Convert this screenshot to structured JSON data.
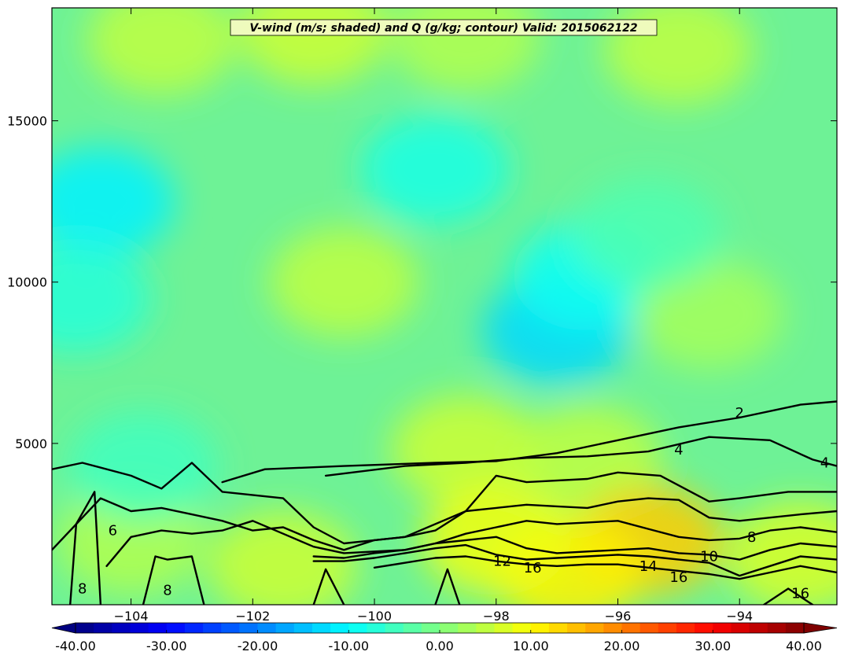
{
  "chart_data": {
    "type": "heatmap",
    "title": "V-wind (m/s; shaded) and Q (g/kg; contour) Valid: 2015062122",
    "xlabel": "",
    "ylabel": "",
    "xlim": [
      -105.3,
      -92.4
    ],
    "ylim": [
      0,
      18500
    ],
    "x_ticks": [
      -104,
      -102,
      -100,
      -98,
      -96,
      -94
    ],
    "x_tick_labels": [
      "−104",
      "−102",
      "−100",
      "−98",
      "−96",
      "−94"
    ],
    "y_ticks": [
      5000,
      10000,
      15000
    ],
    "y_tick_labels": [
      "5000",
      "10000",
      "15000"
    ],
    "grid": false,
    "shaded_field": {
      "name": "V-wind",
      "units": "m/s",
      "range": [
        -40,
        40
      ],
      "colormap": "jet",
      "colorbar_ticks": [
        -40,
        -30,
        -20,
        -10,
        0,
        10,
        20,
        30,
        40
      ],
      "colorbar_tick_labels": [
        "-40.00",
        "-30.00",
        "-20.00",
        "-10.00",
        "0.00",
        "10.00",
        "20.00",
        "30.00",
        "40.00"
      ],
      "colorbar_extend": "both",
      "features": [
        {
          "x": -104.5,
          "y": 12500,
          "value": -11
        },
        {
          "x": -104.9,
          "y": 9500,
          "value": -7
        },
        {
          "x": -99.0,
          "y": 13500,
          "value": -8
        },
        {
          "x": -97.0,
          "y": 8500,
          "value": -13
        },
        {
          "x": -96.5,
          "y": 10200,
          "value": -9
        },
        {
          "x": -103.5,
          "y": 17500,
          "value": 5
        },
        {
          "x": -101.0,
          "y": 17800,
          "value": 6
        },
        {
          "x": -98.5,
          "y": 17600,
          "value": 4
        },
        {
          "x": -95.0,
          "y": 17200,
          "value": 5
        },
        {
          "x": -100.5,
          "y": 10000,
          "value": 5
        },
        {
          "x": -94.5,
          "y": 9000,
          "value": 3
        },
        {
          "x": -95.5,
          "y": 11500,
          "value": -4
        },
        {
          "x": -98.5,
          "y": 4800,
          "value": 6
        },
        {
          "x": -96.5,
          "y": 4500,
          "value": 5
        },
        {
          "x": -95.5,
          "y": 2000,
          "value": 14
        },
        {
          "x": -96.8,
          "y": 1000,
          "value": 11
        },
        {
          "x": -98.0,
          "y": 2000,
          "value": 9
        },
        {
          "x": -101.5,
          "y": 1200,
          "value": 6
        },
        {
          "x": -104.0,
          "y": 2000,
          "value": 4
        },
        {
          "x": -93.0,
          "y": 1500,
          "value": 7
        },
        {
          "x": -103.8,
          "y": 4300,
          "value": -5
        }
      ]
    },
    "contour_field": {
      "name": "Q",
      "units": "g/kg",
      "levels": [
        2,
        4,
        6,
        8,
        10,
        12,
        14,
        16
      ],
      "labels": [
        {
          "text": "2",
          "x": -94.0,
          "y": 5950
        },
        {
          "text": "4",
          "x": -95.0,
          "y": 4800
        },
        {
          "text": "4",
          "x": -92.6,
          "y": 4400
        },
        {
          "text": "6",
          "x": -104.3,
          "y": 2300
        },
        {
          "text": "8",
          "x": -104.8,
          "y": 500
        },
        {
          "text": "8",
          "x": -103.4,
          "y": 450
        },
        {
          "text": "8",
          "x": -93.8,
          "y": 2100
        },
        {
          "text": "10",
          "x": -94.5,
          "y": 1500
        },
        {
          "text": "12",
          "x": -97.9,
          "y": 1350
        },
        {
          "text": "14",
          "x": -95.5,
          "y": 1200
        },
        {
          "text": "16",
          "x": -97.4,
          "y": 1150
        },
        {
          "text": "16",
          "x": -95.0,
          "y": 850
        },
        {
          "text": "16",
          "x": -93.0,
          "y": 350
        }
      ],
      "lines": [
        {
          "level": 2,
          "x": [
            -102.5,
            -101.8,
            -100.5,
            -99.0,
            -98.0,
            -97.0,
            -96.0,
            -95.0,
            -94.0,
            -93.0,
            -92.4
          ],
          "y": [
            3800,
            4200,
            4300,
            4400,
            4450,
            4700,
            5100,
            5500,
            5800,
            6200,
            6300
          ]
        },
        {
          "level": 4,
          "x": [
            -100.8,
            -99.5,
            -98.5,
            -97.5,
            -96.5,
            -95.5,
            -94.5,
            -93.5,
            -92.8,
            -92.4
          ],
          "y": [
            4000,
            4300,
            4400,
            4550,
            4600,
            4750,
            5200,
            5100,
            4500,
            4300
          ]
        },
        {
          "level": 6,
          "x": [
            -105.3,
            -104.8,
            -104.0,
            -103.5,
            -103.0,
            -102.5,
            -101.5,
            -101.0,
            -100.5,
            -100.0,
            -99.5,
            -98.5,
            -98.0,
            -97.5,
            -96.5,
            -96.0,
            -95.3,
            -94.5,
            -94.0,
            -93.2,
            -92.4
          ],
          "y": [
            4200,
            4400,
            4000,
            3600,
            4400,
            3500,
            3300,
            2400,
            1900,
            2000,
            2100,
            2900,
            4000,
            3800,
            3900,
            4100,
            4000,
            3200,
            3300,
            3500,
            3500
          ]
        },
        {
          "level": 8,
          "x": [
            -105.3,
            -104.5,
            -104.0,
            -103.5,
            -103.0,
            -102.5,
            -102.0,
            -101.5,
            -101.0,
            -100.5,
            -100.0,
            -99.5,
            -99.0,
            -98.5,
            -98.0,
            -97.5,
            -97.0,
            -96.5,
            -96.0,
            -95.5,
            -95.0,
            -94.5,
            -94.0,
            -93.5,
            -93.0,
            -92.4
          ],
          "y": [
            1700,
            3300,
            2900,
            3000,
            2800,
            2600,
            2300,
            2400,
            2000,
            1700,
            2000,
            2100,
            2300,
            2900,
            3000,
            3100,
            3050,
            3000,
            3200,
            3300,
            3250,
            2700,
            2600,
            2700,
            2800,
            2900
          ]
        },
        {
          "level": 10,
          "x": [
            -104.4,
            -104.0,
            -103.5,
            -103.0,
            -102.5,
            -102.0,
            -101.5,
            -101.0,
            -100.5,
            -100.0,
            -99.5,
            -99.0,
            -98.5,
            -98.0,
            -97.5,
            -97.0,
            -96.5,
            -96.0,
            -95.5,
            -95.0,
            -94.5,
            -94.0,
            -93.5,
            -93.0,
            -92.4
          ],
          "y": [
            1200,
            2100,
            2300,
            2200,
            2300,
            2600,
            2200,
            1800,
            1600,
            1650,
            1700,
            1900,
            2200,
            2400,
            2600,
            2500,
            2550,
            2600,
            2350,
            2100,
            2000,
            2050,
            2300,
            2400,
            2250
          ]
        },
        {
          "level": 12,
          "x": [
            -101.0,
            -100.5,
            -100.0,
            -99.5,
            -99.0,
            -98.5,
            -98.0,
            -97.5,
            -97.0,
            -96.5,
            -96.0,
            -95.5,
            -95.0,
            -94.5,
            -94.0,
            -93.5,
            -93.0,
            -92.4
          ],
          "y": [
            1500,
            1450,
            1600,
            1700,
            1900,
            2000,
            2100,
            1750,
            1600,
            1650,
            1700,
            1750,
            1600,
            1550,
            1400,
            1700,
            1900,
            1800
          ]
        },
        {
          "level": 14,
          "x": [
            -101.0,
            -100.5,
            -100.0,
            -99.5,
            -99.0,
            -98.5,
            -98.0,
            -97.5,
            -97.0,
            -96.5,
            -96.0,
            -95.5,
            -95.0,
            -94.5,
            -94.0,
            -93.5,
            -93.0,
            -92.4
          ],
          "y": [
            1350,
            1350,
            1450,
            1600,
            1750,
            1850,
            1550,
            1400,
            1450,
            1500,
            1550,
            1500,
            1400,
            1300,
            900,
            1200,
            1500,
            1400
          ]
        },
        {
          "level": 16,
          "x": [
            -100.0,
            -99.5,
            -99.0,
            -98.5,
            -98.0,
            -97.5,
            -97.0,
            -96.5,
            -96.0,
            -95.5,
            -95.0,
            -94.5,
            -94.0,
            -93.5,
            -93.0,
            -92.4
          ],
          "y": [
            1150,
            1300,
            1450,
            1500,
            1350,
            1250,
            1200,
            1250,
            1250,
            1150,
            1050,
            950,
            800,
            1000,
            1200,
            1000
          ]
        },
        {
          "level": 8,
          "x": [
            -105.0,
            -104.9,
            -104.6,
            -104.5
          ],
          "y": [
            0,
            2500,
            3500,
            0
          ]
        },
        {
          "level": 8,
          "x": [
            -103.8,
            -103.6,
            -103.4,
            -103.0,
            -102.8
          ],
          "y": [
            0,
            1500,
            1400,
            1500,
            0
          ]
        },
        {
          "level": 8,
          "x": [
            -101.0,
            -100.8,
            -100.5
          ],
          "y": [
            0,
            1100,
            0
          ]
        },
        {
          "level": 8,
          "x": [
            -99.0,
            -98.8,
            -98.6
          ],
          "y": [
            0,
            1100,
            0
          ]
        },
        {
          "level": 16,
          "x": [
            -93.6,
            -93.2,
            -92.8
          ],
          "y": [
            0,
            500,
            0
          ]
        }
      ]
    }
  }
}
